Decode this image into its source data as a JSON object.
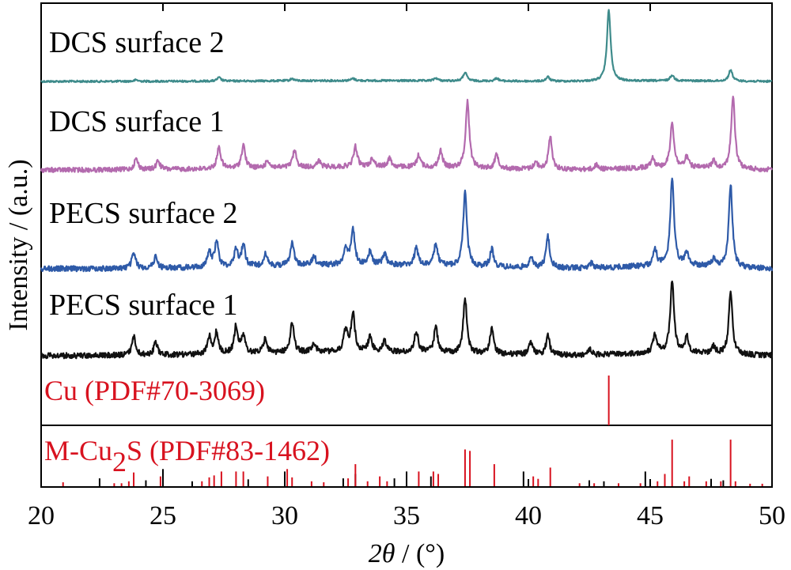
{
  "chart_data": {
    "type": "line",
    "xlabel_italic": "2θ",
    "xlabel_rest": " / (°)",
    "ylabel": "Intensity / (a.u.)",
    "xlim": [
      20,
      50
    ],
    "xticks": [
      20,
      25,
      30,
      35,
      40,
      45,
      50
    ],
    "grid": false,
    "series": [
      {
        "name": "DCS surface 2",
        "color": "#3e8b8b",
        "peaks": [
          [
            23.9,
            0.02
          ],
          [
            27.3,
            0.05
          ],
          [
            30.3,
            0.03
          ],
          [
            32.8,
            0.03
          ],
          [
            36.2,
            0.04
          ],
          [
            37.4,
            0.12
          ],
          [
            38.7,
            0.04
          ],
          [
            40.8,
            0.06
          ],
          [
            43.3,
            1.0
          ],
          [
            45.9,
            0.08
          ],
          [
            48.3,
            0.16
          ]
        ]
      },
      {
        "name": "DCS surface 1",
        "color": "#b36aae",
        "peaks": [
          [
            23.9,
            0.15
          ],
          [
            24.8,
            0.12
          ],
          [
            27.3,
            0.3
          ],
          [
            28.3,
            0.32
          ],
          [
            29.3,
            0.1
          ],
          [
            30.4,
            0.23
          ],
          [
            31.4,
            0.08
          ],
          [
            32.9,
            0.28
          ],
          [
            33.6,
            0.12
          ],
          [
            34.3,
            0.12
          ],
          [
            35.5,
            0.17
          ],
          [
            36.4,
            0.23
          ],
          [
            37.5,
            0.92
          ],
          [
            38.7,
            0.2
          ],
          [
            40.3,
            0.1
          ],
          [
            40.9,
            0.44
          ],
          [
            42.8,
            0.06
          ],
          [
            45.1,
            0.14
          ],
          [
            45.9,
            0.62
          ],
          [
            46.5,
            0.14
          ],
          [
            47.6,
            0.1
          ],
          [
            48.4,
            1.0
          ]
        ]
      },
      {
        "name": "PECS surface 2",
        "color": "#2e5aa8",
        "peaks": [
          [
            23.8,
            0.18
          ],
          [
            24.7,
            0.13
          ],
          [
            26.9,
            0.17
          ],
          [
            27.2,
            0.3
          ],
          [
            28.0,
            0.2
          ],
          [
            28.3,
            0.25
          ],
          [
            29.2,
            0.14
          ],
          [
            30.3,
            0.27
          ],
          [
            31.2,
            0.1
          ],
          [
            32.5,
            0.2
          ],
          [
            32.8,
            0.4
          ],
          [
            33.5,
            0.15
          ],
          [
            34.1,
            0.13
          ],
          [
            35.4,
            0.2
          ],
          [
            36.2,
            0.25
          ],
          [
            37.4,
            0.85
          ],
          [
            38.5,
            0.2
          ],
          [
            40.1,
            0.12
          ],
          [
            40.8,
            0.36
          ],
          [
            42.6,
            0.06
          ],
          [
            45.2,
            0.18
          ],
          [
            45.9,
            1.0
          ],
          [
            46.5,
            0.15
          ],
          [
            47.6,
            0.08
          ],
          [
            48.3,
            0.95
          ]
        ]
      },
      {
        "name": "PECS surface 1",
        "color": "#111111",
        "peaks": [
          [
            23.8,
            0.22
          ],
          [
            24.7,
            0.15
          ],
          [
            26.9,
            0.2
          ],
          [
            27.2,
            0.25
          ],
          [
            28.0,
            0.32
          ],
          [
            28.3,
            0.2
          ],
          [
            29.2,
            0.16
          ],
          [
            30.3,
            0.35
          ],
          [
            31.2,
            0.1
          ],
          [
            32.5,
            0.25
          ],
          [
            32.8,
            0.45
          ],
          [
            33.5,
            0.17
          ],
          [
            34.1,
            0.13
          ],
          [
            35.4,
            0.25
          ],
          [
            36.2,
            0.3
          ],
          [
            37.4,
            0.65
          ],
          [
            38.5,
            0.3
          ],
          [
            40.1,
            0.15
          ],
          [
            40.8,
            0.22
          ],
          [
            42.5,
            0.07
          ],
          [
            45.2,
            0.22
          ],
          [
            45.9,
            0.85
          ],
          [
            46.5,
            0.18
          ],
          [
            47.6,
            0.08
          ],
          [
            48.3,
            0.72
          ]
        ]
      }
    ],
    "references": [
      {
        "name": "Cu (PDF#70-3069)",
        "color": "#d8121f",
        "lines": [
          [
            43.3,
            1.0
          ]
        ]
      },
      {
        "name_main": "M-Cu",
        "name_sub": "2",
        "name_end": "S (PDF#83-1462)",
        "color": "#d8121f",
        "black_color": "#000000",
        "lines_red": [
          [
            20.9,
            0.08
          ],
          [
            23.0,
            0.06
          ],
          [
            23.3,
            0.06
          ],
          [
            23.6,
            0.1
          ],
          [
            23.8,
            0.28
          ],
          [
            24.9,
            0.2
          ],
          [
            26.6,
            0.1
          ],
          [
            26.9,
            0.18
          ],
          [
            27.1,
            0.22
          ],
          [
            27.4,
            0.3
          ],
          [
            28.0,
            0.3
          ],
          [
            28.3,
            0.3
          ],
          [
            29.3,
            0.2
          ],
          [
            30.1,
            0.35
          ],
          [
            30.3,
            0.18
          ],
          [
            31.1,
            0.1
          ],
          [
            31.6,
            0.08
          ],
          [
            32.6,
            0.16
          ],
          [
            32.9,
            0.45
          ],
          [
            33.4,
            0.1
          ],
          [
            33.9,
            0.2
          ],
          [
            34.2,
            0.1
          ],
          [
            35.5,
            0.3
          ],
          [
            36.1,
            0.3
          ],
          [
            36.3,
            0.25
          ],
          [
            37.4,
            0.75
          ],
          [
            37.6,
            0.72
          ],
          [
            38.6,
            0.45
          ],
          [
            40.2,
            0.2
          ],
          [
            40.4,
            0.15
          ],
          [
            40.9,
            0.38
          ],
          [
            42.1,
            0.06
          ],
          [
            42.7,
            0.06
          ],
          [
            43.7,
            0.06
          ],
          [
            44.6,
            0.06
          ],
          [
            45.3,
            0.1
          ],
          [
            45.6,
            0.25
          ],
          [
            45.9,
            0.95
          ],
          [
            46.4,
            0.1
          ],
          [
            46.6,
            0.2
          ],
          [
            47.3,
            0.1
          ],
          [
            47.9,
            0.1
          ],
          [
            48.3,
            0.95
          ],
          [
            48.5,
            0.1
          ],
          [
            49.1,
            0.05
          ],
          [
            49.6,
            0.05
          ]
        ],
        "lines_black": [
          [
            22.4,
            0.16
          ],
          [
            24.3,
            0.12
          ],
          [
            25.0,
            0.35
          ],
          [
            26.2,
            0.1
          ],
          [
            28.5,
            0.14
          ],
          [
            30.0,
            0.3
          ],
          [
            32.4,
            0.16
          ],
          [
            32.9,
            0.25
          ],
          [
            34.5,
            0.16
          ],
          [
            35.0,
            0.3
          ],
          [
            36.0,
            0.2
          ],
          [
            39.8,
            0.3
          ],
          [
            42.5,
            0.12
          ],
          [
            43.1,
            0.1
          ],
          [
            44.8,
            0.3
          ],
          [
            47.5,
            0.15
          ],
          [
            48.0,
            0.12
          ]
        ]
      }
    ]
  }
}
